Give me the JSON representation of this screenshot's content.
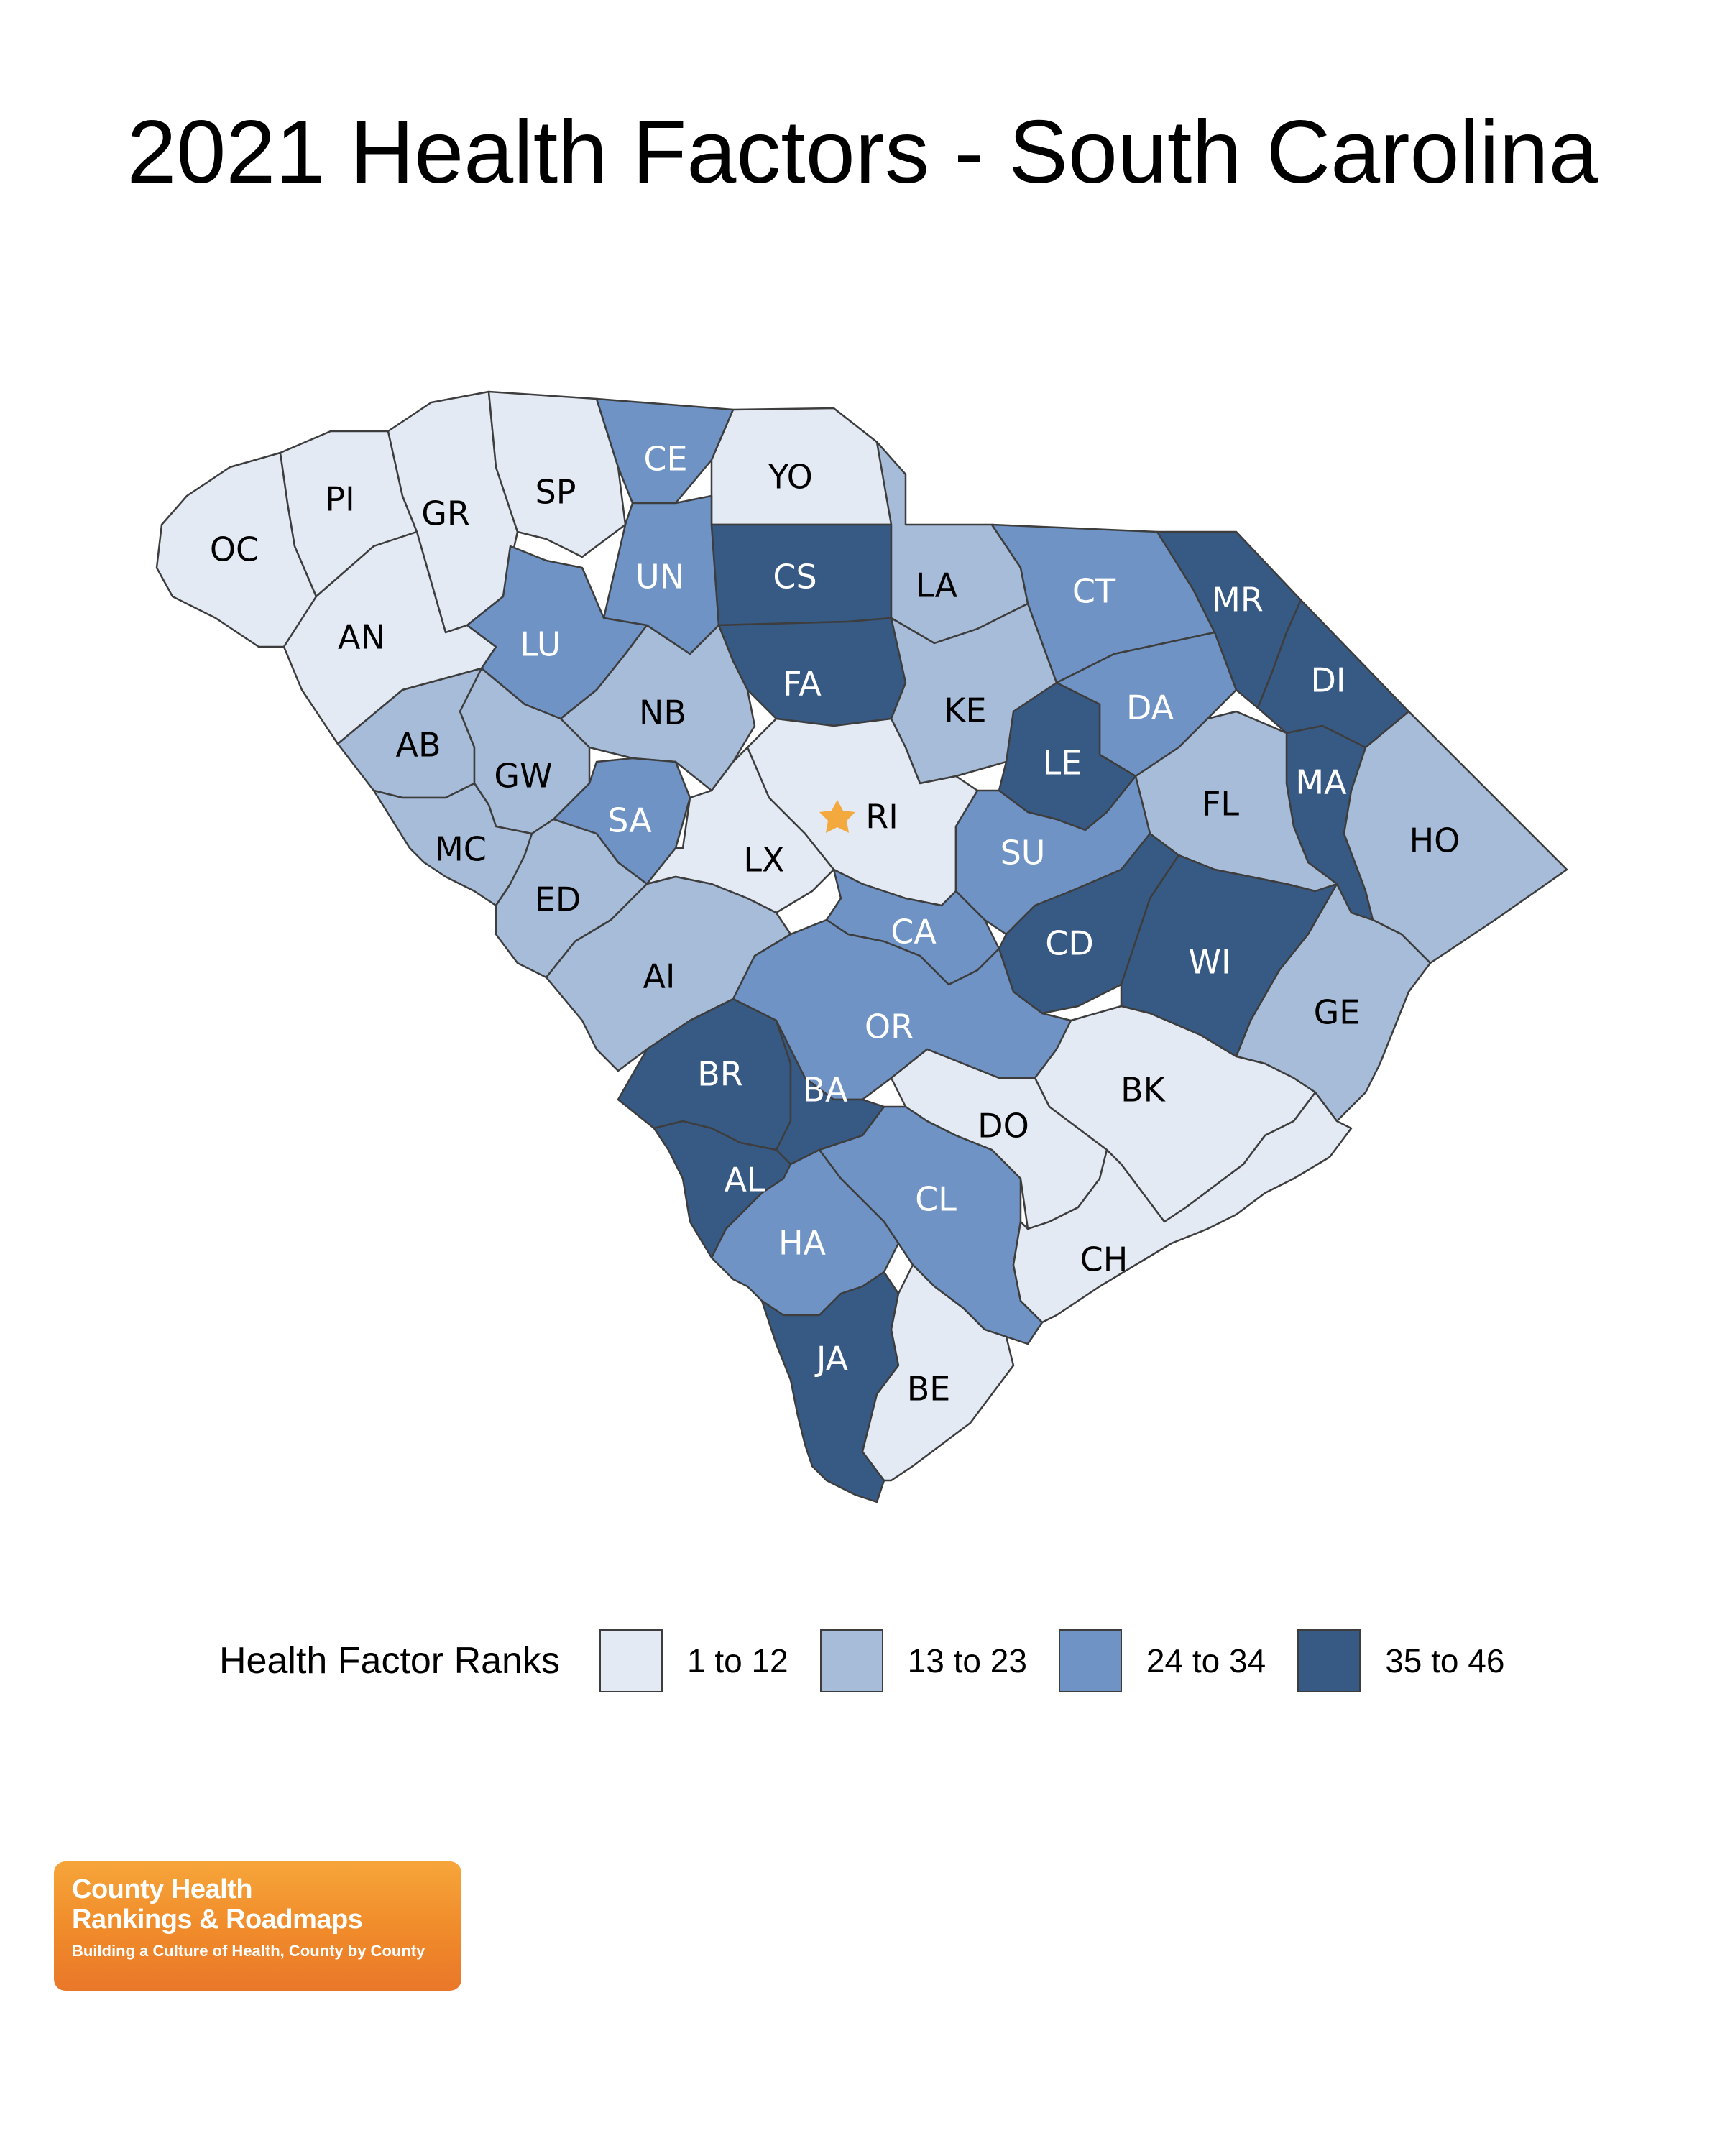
{
  "title": "2021 Health Factors - South Carolina",
  "colors": {
    "1": "#e3eaf4",
    "2": "#a7bcd9",
    "3": "#6e93c4",
    "4": "#375a85",
    "star": "#f4a93e"
  },
  "legend": {
    "title": "Health Factor Ranks",
    "items": [
      {
        "label": "1 to 12",
        "class": 1
      },
      {
        "label": "13 to 23",
        "class": 2
      },
      {
        "label": "24 to 34",
        "class": 3
      },
      {
        "label": "35 to 46",
        "class": 4
      }
    ]
  },
  "counties": [
    {
      "code": "OC",
      "class": 1
    },
    {
      "code": "PI",
      "class": 1
    },
    {
      "code": "GR",
      "class": 1
    },
    {
      "code": "SP",
      "class": 1
    },
    {
      "code": "CE",
      "class": 3
    },
    {
      "code": "YO",
      "class": 1
    },
    {
      "code": "AN",
      "class": 1
    },
    {
      "code": "UN",
      "class": 3
    },
    {
      "code": "CS",
      "class": 4
    },
    {
      "code": "LA",
      "class": 2
    },
    {
      "code": "CT",
      "class": 3
    },
    {
      "code": "MR",
      "class": 4
    },
    {
      "code": "LU",
      "class": 3
    },
    {
      "code": "FA",
      "class": 4
    },
    {
      "code": "NB",
      "class": 2
    },
    {
      "code": "KE",
      "class": 2
    },
    {
      "code": "DA",
      "class": 3
    },
    {
      "code": "DI",
      "class": 4
    },
    {
      "code": "AB",
      "class": 2
    },
    {
      "code": "GW",
      "class": 2
    },
    {
      "code": "LE",
      "class": 4
    },
    {
      "code": "MA",
      "class": 4
    },
    {
      "code": "MC",
      "class": 2
    },
    {
      "code": "SA",
      "class": 3
    },
    {
      "code": "RI",
      "class": 1
    },
    {
      "code": "FL",
      "class": 2
    },
    {
      "code": "HO",
      "class": 2
    },
    {
      "code": "LX",
      "class": 1
    },
    {
      "code": "ED",
      "class": 2
    },
    {
      "code": "SU",
      "class": 3
    },
    {
      "code": "CA",
      "class": 3
    },
    {
      "code": "CD",
      "class": 4
    },
    {
      "code": "WI",
      "class": 4
    },
    {
      "code": "AI",
      "class": 2
    },
    {
      "code": "GE",
      "class": 2
    },
    {
      "code": "OR",
      "class": 3
    },
    {
      "code": "BR",
      "class": 4
    },
    {
      "code": "BA",
      "class": 4
    },
    {
      "code": "BK",
      "class": 1
    },
    {
      "code": "DO",
      "class": 1
    },
    {
      "code": "AL",
      "class": 4
    },
    {
      "code": "CL",
      "class": 3
    },
    {
      "code": "HA",
      "class": 3
    },
    {
      "code": "CH",
      "class": 1
    },
    {
      "code": "JA",
      "class": 4
    },
    {
      "code": "BE",
      "class": 1
    }
  ],
  "logo": {
    "line1": "County Health",
    "line2": "Rankings & Roadmaps",
    "tagline": "Building a Culture of Health, County by County"
  }
}
